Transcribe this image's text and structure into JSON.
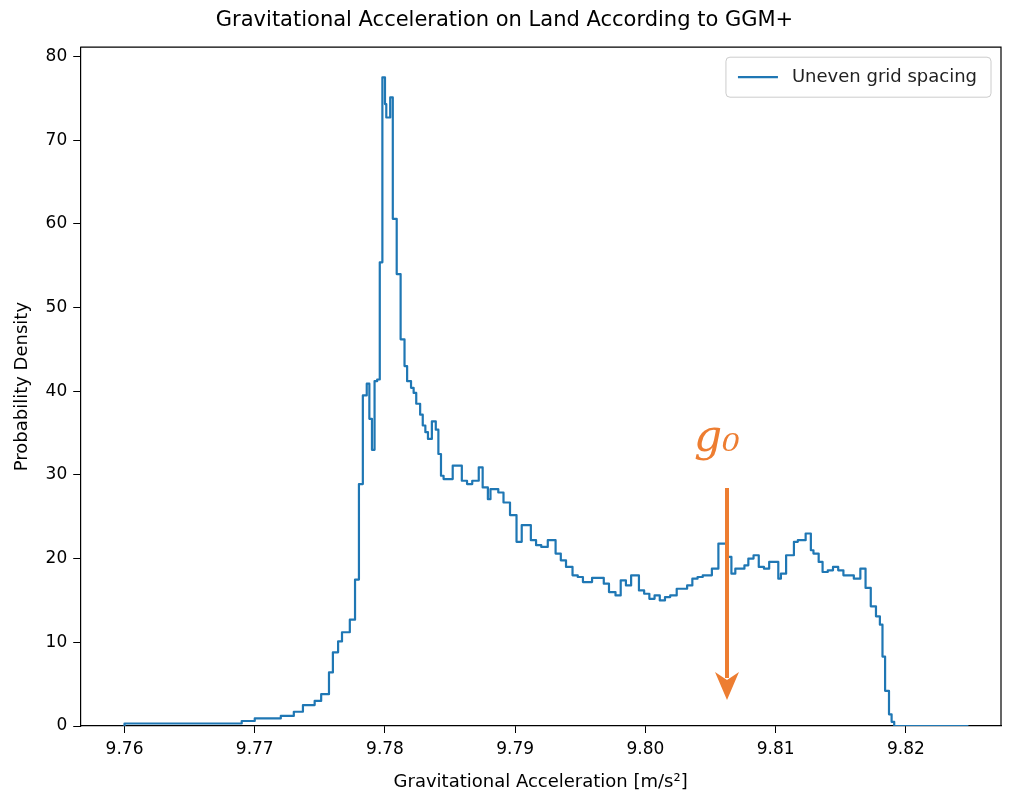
{
  "chart_data": {
    "type": "step",
    "title": "Gravitational Acceleration on Land According to GGM+",
    "xlabel": "Gravitational Acceleration [m/s²]",
    "ylabel": "Probability Density",
    "xlim": [
      9.7566,
      9.8273
    ],
    "ylim": [
      0,
      81.1
    ],
    "xticks": [
      9.76,
      9.77,
      9.78,
      9.79,
      {
        "value": 9.8,
        "label": "9.80"
      },
      9.81,
      9.82
    ],
    "yticks": [
      0,
      10,
      20,
      30,
      40,
      50,
      60,
      70,
      80
    ],
    "grid": false,
    "legend": "top right",
    "marker": "none",
    "line_style": "solid",
    "annotations": [
      "g₀"
    ],
    "series": [
      {
        "name": "Uneven grid spacing",
        "color": "#1f77b4",
        "x": [
          9.76,
          9.769,
          9.77,
          9.772,
          9.773,
          9.7737,
          9.7746,
          9.7751,
          9.7757,
          9.776,
          9.7764,
          9.7767,
          9.7773,
          9.7777,
          9.778,
          9.7783,
          9.7786,
          9.7788,
          9.779,
          9.7792,
          9.7794,
          9.7796,
          9.7798,
          9.78,
          9.7801,
          9.7804,
          9.7806,
          9.7809,
          9.7812,
          9.7815,
          9.7817,
          9.782,
          9.7822,
          9.7824,
          9.7827,
          9.7829,
          9.7831,
          9.7833,
          9.7836,
          9.7839,
          9.7841,
          9.7843,
          9.7845,
          9.7852,
          9.7859,
          9.7863,
          9.7867,
          9.7872,
          9.7875,
          9.7879,
          9.7881,
          9.7887,
          9.7891,
          9.7896,
          9.7901,
          9.7905,
          9.7912,
          9.7916,
          9.792,
          9.7925,
          9.7931,
          9.7935,
          9.7939,
          9.7944,
          9.7948,
          9.7952,
          9.7959,
          9.7968,
          9.7972,
          9.7977,
          9.7981,
          9.7985,
          9.7989,
          9.7995,
          9.7999,
          9.8003,
          9.8007,
          9.8011,
          9.8015,
          9.8019,
          9.8024,
          9.8032,
          9.8036,
          9.804,
          9.8044,
          9.8051,
          9.8056,
          9.8062,
          9.8066,
          9.8069,
          9.8076,
          9.8079,
          9.8083,
          9.8087,
          9.8091,
          9.8095,
          9.8102,
          9.8104,
          9.8108,
          9.8114,
          9.8117,
          9.8123,
          9.8127,
          9.8129,
          9.8133,
          9.8136,
          9.814,
          9.8144,
          9.8148,
          9.8152,
          9.816,
          9.8165,
          9.8169,
          9.8173,
          9.8177,
          9.818,
          9.8182,
          9.8184,
          9.8187,
          9.8189,
          9.8191,
          9.8194,
          9.8248
        ],
        "values": [
          0,
          0.3,
          0.6,
          0.9,
          1.2,
          1.7,
          2.5,
          3,
          3.8,
          6.4,
          8.8,
          10.1,
          11.2,
          12.7,
          17.5,
          28.9,
          39.5,
          40.9,
          36.7,
          33,
          41.2,
          41.4,
          55.4,
          77.5,
          74.3,
          72.7,
          75.1,
          60.6,
          54,
          46.2,
          43,
          41.2,
          40.4,
          39.8,
          38.5,
          37.2,
          35.9,
          35.1,
          34.3,
          36.4,
          35.4,
          32.5,
          29.9,
          29.5,
          31.1,
          29.3,
          28.9,
          29.3,
          30.9,
          28.5,
          27.1,
          28.3,
          27.9,
          26.7,
          25.2,
          22,
          24,
          22.2,
          21.6,
          21.4,
          22.2,
          20.6,
          19.8,
          19,
          18,
          17.8,
          17.2,
          17.7,
          17,
          16,
          15.6,
          17.4,
          16.8,
          18,
          16.2,
          15.8,
          15.2,
          15.6,
          15,
          15.4,
          15.6,
          16.4,
          16.8,
          17.6,
          17.8,
          18,
          18.8,
          21.8,
          20.2,
          18.2,
          18.8,
          19.2,
          20,
          20.4,
          19,
          18.8,
          19.6,
          17.6,
          18.2,
          20.4,
          22,
          22.2,
          23,
          21,
          20.6,
          19.6,
          18.4,
          18.6,
          19,
          18.6,
          18,
          17.6,
          18.8,
          16.5,
          14.3,
          13.1,
          12.1,
          8.3,
          4.2,
          1.4,
          0.5,
          0,
          0
        ]
      }
    ]
  }
}
